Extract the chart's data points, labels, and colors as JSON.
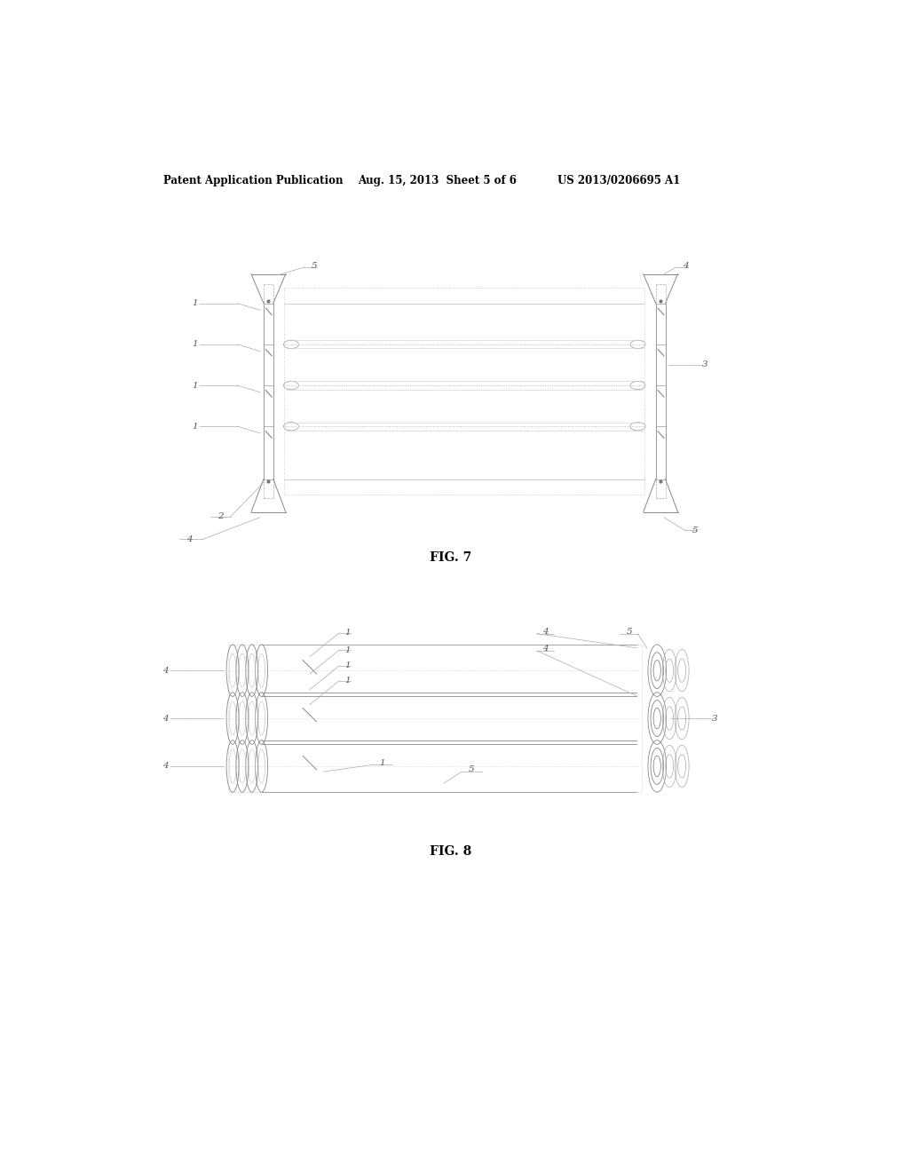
{
  "background_color": "#ffffff",
  "header_text": "Patent Application Publication",
  "header_date": "Aug. 15, 2013  Sheet 5 of 6",
  "header_patent": "US 2013/0206695 A1",
  "fig7_caption": "FIG. 7",
  "fig8_caption": "FIG. 8",
  "text_color": "#000000",
  "light_gray": "#bbbbbb",
  "mid_gray": "#999999",
  "dark_gray": "#555555",
  "very_light": "#dddddd"
}
